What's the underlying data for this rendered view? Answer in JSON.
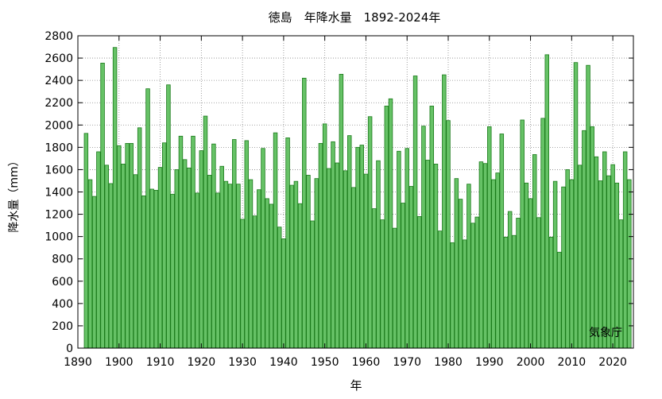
{
  "chart_data": {
    "type": "bar",
    "title": "徳島　年降水量　1892-2024年",
    "xlabel": "年",
    "ylabel": "降水量（mm）",
    "source_label": "気象庁",
    "xlim": [
      1890,
      2025
    ],
    "ylim": [
      0,
      2800
    ],
    "x_ticks": [
      1890,
      1900,
      1910,
      1920,
      1930,
      1940,
      1950,
      1960,
      1970,
      1980,
      1990,
      2000,
      2010,
      2020
    ],
    "y_ticks": [
      0,
      200,
      400,
      600,
      800,
      1000,
      1200,
      1400,
      1600,
      1800,
      2000,
      2200,
      2400,
      2600,
      2800
    ],
    "grid": true,
    "bar_fill": "#66c266",
    "bar_stroke": "#1a7a1a",
    "x": [
      1892,
      1893,
      1894,
      1895,
      1896,
      1897,
      1898,
      1899,
      1900,
      1901,
      1902,
      1903,
      1904,
      1905,
      1906,
      1907,
      1908,
      1909,
      1910,
      1911,
      1912,
      1913,
      1914,
      1915,
      1916,
      1917,
      1918,
      1919,
      1920,
      1921,
      1922,
      1923,
      1924,
      1925,
      1926,
      1927,
      1928,
      1929,
      1930,
      1931,
      1932,
      1933,
      1934,
      1935,
      1936,
      1937,
      1938,
      1939,
      1940,
      1941,
      1942,
      1943,
      1944,
      1945,
      1946,
      1947,
      1948,
      1949,
      1950,
      1951,
      1952,
      1953,
      1954,
      1955,
      1956,
      1957,
      1958,
      1959,
      1960,
      1961,
      1962,
      1963,
      1964,
      1965,
      1966,
      1967,
      1968,
      1969,
      1970,
      1971,
      1972,
      1973,
      1974,
      1975,
      1976,
      1977,
      1978,
      1979,
      1980,
      1981,
      1982,
      1983,
      1984,
      1985,
      1986,
      1987,
      1988,
      1989,
      1990,
      1991,
      1992,
      1993,
      1994,
      1995,
      1996,
      1997,
      1998,
      1999,
      2000,
      2001,
      2002,
      2003,
      2004,
      2005,
      2006,
      2007,
      2008,
      2009,
      2010,
      2011,
      2012,
      2013,
      2014,
      2015,
      2016,
      2017,
      2018,
      2019,
      2020,
      2021,
      2022,
      2023,
      2024
    ],
    "values": [
      1925,
      1510,
      1360,
      1760,
      2555,
      1640,
      1475,
      2695,
      1815,
      1650,
      1835,
      1835,
      1555,
      1975,
      1365,
      2325,
      1425,
      1415,
      1620,
      1840,
      2360,
      1380,
      1600,
      1900,
      1690,
      1615,
      1900,
      1390,
      1770,
      2080,
      1550,
      1830,
      1390,
      1630,
      1495,
      1470,
      1870,
      1470,
      1155,
      1860,
      1510,
      1185,
      1420,
      1790,
      1340,
      1290,
      1930,
      1085,
      980,
      1885,
      1460,
      1495,
      1295,
      2420,
      1550,
      1140,
      1520,
      1835,
      2010,
      1610,
      1850,
      1660,
      2455,
      1590,
      1905,
      1440,
      1800,
      1820,
      1560,
      2075,
      1250,
      1680,
      1150,
      2170,
      2235,
      1075,
      1765,
      1300,
      1790,
      1450,
      2440,
      1180,
      1990,
      1685,
      2170,
      1650,
      1050,
      2450,
      2040,
      945,
      1520,
      1335,
      970,
      1470,
      1120,
      1175,
      1670,
      1655,
      1985,
      1510,
      1570,
      1920,
      995,
      1225,
      1010,
      1165,
      2045,
      1480,
      1340,
      1735,
      1170,
      2060,
      2630,
      995,
      1495,
      860,
      1445,
      1600,
      1510,
      2560,
      1640,
      1950,
      2535,
      1985,
      1715,
      1500,
      1760,
      1545,
      1645,
      1480,
      1150,
      1760,
      1510
    ]
  }
}
